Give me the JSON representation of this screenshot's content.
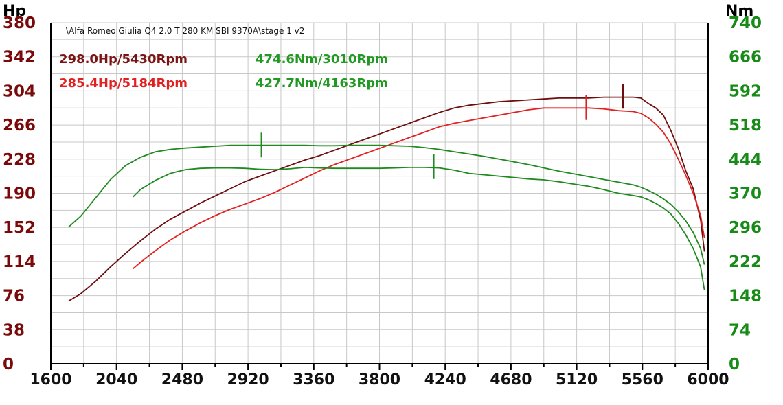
{
  "chart_data": {
    "type": "line",
    "title": "\\Alfa Romeo Giulia Q4 2.0 T 280 KM SBI 9370A\\stage 1 v2",
    "left_axis_label": "Hp",
    "right_axis_label": "Nm",
    "left_ticks": [
      "0",
      "38",
      "76",
      "114",
      "152",
      "190",
      "228",
      "266",
      "304",
      "342",
      "380"
    ],
    "right_ticks": [
      "0",
      "74",
      "148",
      "222",
      "296",
      "370",
      "444",
      "518",
      "592",
      "666",
      "740"
    ],
    "x_ticks": [
      "1600",
      "2040",
      "2480",
      "2920",
      "3360",
      "3800",
      "4240",
      "4680",
      "5120",
      "5560",
      "6000"
    ],
    "xlim": [
      1600,
      6000
    ],
    "ylim_left": [
      0,
      380
    ],
    "ylim_right": [
      0,
      740
    ],
    "grid": true,
    "annotations": [
      {
        "text": "298.0Hp/5430Rpm",
        "color": "#7a1515"
      },
      {
        "text": "474.6Nm/3010Rpm",
        "color": "#229922"
      },
      {
        "text": "285.4Hp/5184Rpm",
        "color": "#e32020"
      },
      {
        "text": "427.7Nm/4163Rpm",
        "color": "#229922"
      }
    ],
    "series": [
      {
        "axis": "left",
        "color": "#6e0f0f",
        "peak": [
          5430,
          298.0
        ],
        "x": [
          1720,
          1800,
          1900,
          2000,
          2100,
          2200,
          2300,
          2400,
          2500,
          2600,
          2700,
          2800,
          2900,
          3000,
          3100,
          3200,
          3300,
          3400,
          3500,
          3600,
          3700,
          3800,
          3900,
          4000,
          4100,
          4200,
          4300,
          4400,
          4500,
          4600,
          4700,
          4800,
          4900,
          5000,
          5100,
          5200,
          5300,
          5400,
          5500,
          5550,
          5600,
          5650,
          5700,
          5750,
          5800,
          5850,
          5900,
          5950,
          5975
        ],
        "y": [
          70,
          78,
          92,
          108,
          123,
          137,
          150,
          161,
          170,
          179,
          187,
          195,
          203,
          209,
          215,
          221,
          227,
          232,
          238,
          244,
          250,
          256,
          262,
          268,
          274,
          280,
          285,
          288,
          290,
          292,
          293,
          294,
          295,
          296,
          296,
          296,
          297,
          297,
          297,
          296,
          290,
          285,
          277,
          260,
          240,
          215,
          195,
          160,
          125
        ]
      },
      {
        "axis": "left",
        "color": "#e32020",
        "peak": [
          5184,
          285.4
        ],
        "x": [
          2150,
          2200,
          2300,
          2400,
          2500,
          2600,
          2700,
          2800,
          2900,
          3000,
          3100,
          3200,
          3300,
          3400,
          3500,
          3600,
          3700,
          3800,
          3900,
          4000,
          4100,
          4200,
          4300,
          4400,
          4500,
          4600,
          4700,
          4800,
          4900,
          5000,
          5100,
          5200,
          5300,
          5400,
          5500,
          5550,
          5600,
          5650,
          5700,
          5750,
          5800,
          5850,
          5900,
          5950,
          5975
        ],
        "y": [
          106,
          113,
          126,
          138,
          148,
          157,
          165,
          172,
          178,
          184,
          191,
          199,
          207,
          215,
          222,
          228,
          234,
          240,
          246,
          252,
          258,
          264,
          268,
          271,
          274,
          277,
          280,
          283,
          285,
          285,
          285,
          285,
          284,
          282,
          281,
          279,
          274,
          267,
          258,
          245,
          228,
          210,
          190,
          165,
          140
        ]
      },
      {
        "axis": "right",
        "color": "#1f8a1f",
        "peak": [
          3010,
          474.6
        ],
        "x": [
          1720,
          1800,
          1900,
          2000,
          2100,
          2200,
          2300,
          2400,
          2500,
          2600,
          2700,
          2800,
          2900,
          3000,
          3100,
          3200,
          3300,
          3400,
          3500,
          3600,
          3700,
          3800,
          3900,
          4000,
          4100,
          4200,
          4300,
          4400,
          4500,
          4600,
          4700,
          4800,
          4900,
          5000,
          5100,
          5200,
          5300,
          5400,
          5500,
          5550,
          5600,
          5650,
          5700,
          5750,
          5800,
          5850,
          5900,
          5950,
          5975
        ],
        "y": [
          297,
          320,
          360,
          400,
          430,
          448,
          460,
          465,
          468,
          470,
          472,
          474,
          474,
          474,
          474,
          474,
          474,
          473,
          473,
          474,
          474,
          474,
          473,
          472,
          469,
          465,
          460,
          455,
          450,
          444,
          438,
          432,
          425,
          418,
          412,
          406,
          400,
          394,
          388,
          383,
          376,
          368,
          358,
          346,
          330,
          310,
          285,
          250,
          215
        ]
      },
      {
        "axis": "right",
        "color": "#1f8a1f",
        "peak": [
          4163,
          427.7
        ],
        "x": [
          2150,
          2200,
          2300,
          2400,
          2500,
          2600,
          2700,
          2800,
          2900,
          3000,
          3100,
          3200,
          3300,
          3400,
          3500,
          3600,
          3700,
          3800,
          3900,
          4000,
          4100,
          4200,
          4300,
          4400,
          4500,
          4600,
          4700,
          4800,
          4900,
          5000,
          5100,
          5200,
          5300,
          5400,
          5500,
          5550,
          5600,
          5650,
          5700,
          5750,
          5800,
          5850,
          5900,
          5950,
          5975
        ],
        "y": [
          362,
          378,
          398,
          413,
          421,
          424,
          425,
          425,
          424,
          422,
          421,
          423,
          426,
          425,
          424,
          424,
          424,
          424,
          425,
          426,
          426,
          425,
          420,
          413,
          410,
          407,
          404,
          401,
          399,
          395,
          390,
          385,
          378,
          370,
          365,
          362,
          356,
          348,
          338,
          325,
          305,
          280,
          250,
          210,
          160
        ]
      }
    ]
  }
}
